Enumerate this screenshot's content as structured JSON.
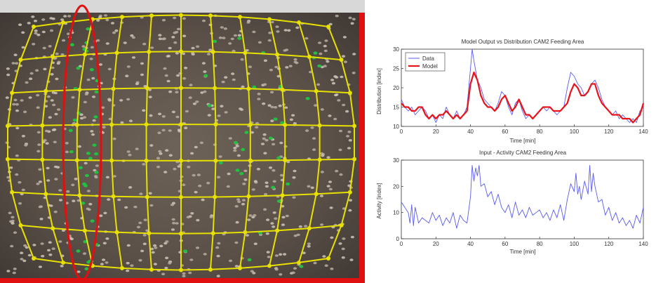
{
  "photo": {
    "description_icon": "camera-image-icon",
    "grid_color": "#e8e000",
    "highlight_color": "#e01010"
  },
  "chart_data": [
    {
      "type": "line",
      "title": "Model Output vs Distribution CAM2 Feeding Area",
      "xlabel": "Time [min]",
      "ylabel": "Distribution [index]",
      "xlim": [
        0,
        140
      ],
      "ylim": [
        10,
        30
      ],
      "xticks": [
        0,
        20,
        40,
        60,
        80,
        100,
        120,
        140
      ],
      "yticks": [
        10,
        15,
        20,
        25,
        30
      ],
      "legend": "top-left",
      "series": [
        {
          "name": "Data",
          "color": "#5a5af0",
          "x": [
            0,
            2,
            4,
            6,
            8,
            10,
            12,
            14,
            16,
            18,
            20,
            22,
            24,
            26,
            28,
            30,
            32,
            34,
            36,
            38,
            40,
            41,
            42,
            44,
            46,
            48,
            50,
            52,
            54,
            56,
            58,
            60,
            62,
            64,
            66,
            68,
            70,
            72,
            74,
            76,
            78,
            80,
            82,
            84,
            86,
            88,
            90,
            92,
            94,
            96,
            98,
            100,
            102,
            104,
            106,
            108,
            110,
            112,
            114,
            116,
            118,
            120,
            122,
            124,
            126,
            128,
            130,
            132,
            134,
            136,
            138,
            140
          ],
          "values": [
            17,
            15,
            14,
            15,
            13,
            14,
            15,
            14,
            12,
            13,
            11,
            13,
            12,
            15,
            13,
            12,
            14,
            12,
            13,
            15,
            25,
            30,
            27,
            22,
            20,
            17,
            16,
            15,
            14,
            16,
            19,
            18,
            15,
            13,
            16,
            17,
            14,
            12,
            13,
            12,
            13,
            14,
            15,
            14,
            15,
            14,
            13,
            14,
            15,
            20,
            24,
            23,
            21,
            20,
            18,
            19,
            21,
            22,
            20,
            17,
            15,
            14,
            13,
            14,
            12,
            13,
            12,
            11,
            12,
            11,
            14,
            15
          ]
        },
        {
          "name": "Model",
          "color": "#e8141c",
          "x": [
            0,
            2,
            4,
            6,
            8,
            10,
            12,
            14,
            16,
            18,
            20,
            22,
            24,
            26,
            28,
            30,
            32,
            34,
            36,
            38,
            40,
            42,
            44,
            46,
            48,
            50,
            52,
            54,
            56,
            58,
            60,
            62,
            64,
            66,
            68,
            70,
            72,
            74,
            76,
            78,
            80,
            82,
            84,
            86,
            88,
            90,
            92,
            94,
            96,
            98,
            100,
            102,
            104,
            106,
            108,
            110,
            112,
            114,
            116,
            118,
            120,
            122,
            124,
            126,
            128,
            130,
            132,
            134,
            136,
            138,
            140
          ],
          "values": [
            16,
            15,
            15,
            14,
            14,
            15,
            15,
            13,
            12,
            13,
            12,
            13,
            13,
            14,
            13,
            12,
            13,
            12,
            13,
            14,
            21,
            24,
            22,
            18,
            16,
            15,
            15,
            14,
            15,
            17,
            18,
            16,
            14,
            15,
            17,
            15,
            13,
            13,
            12,
            13,
            14,
            15,
            15,
            15,
            14,
            14,
            14,
            15,
            16,
            19,
            21,
            20,
            18,
            18,
            19,
            21,
            21,
            18,
            16,
            15,
            14,
            13,
            13,
            13,
            12,
            12,
            12,
            11,
            12,
            13,
            16
          ]
        }
      ]
    },
    {
      "type": "line",
      "title": "Input - Activity CAM2 Feeding Area",
      "xlabel": "Time [min]",
      "ylabel": "Activity [index]",
      "xlim": [
        0,
        140
      ],
      "ylim": [
        0,
        30
      ],
      "xticks": [
        0,
        20,
        40,
        60,
        80,
        100,
        120,
        140
      ],
      "yticks": [
        0,
        10,
        20,
        30
      ],
      "series": [
        {
          "color": "#5a5af0",
          "x": [
            0,
            2,
            4,
            5,
            6,
            7,
            8,
            9,
            10,
            12,
            14,
            16,
            18,
            20,
            22,
            24,
            26,
            28,
            30,
            32,
            34,
            36,
            38,
            40,
            41,
            42,
            43,
            44,
            45,
            46,
            48,
            50,
            52,
            54,
            56,
            58,
            60,
            62,
            64,
            66,
            68,
            70,
            72,
            74,
            76,
            78,
            80,
            82,
            84,
            86,
            88,
            90,
            92,
            94,
            96,
            98,
            100,
            101,
            102,
            103,
            104,
            106,
            108,
            109,
            110,
            111,
            112,
            114,
            116,
            118,
            120,
            122,
            124,
            126,
            128,
            130,
            132,
            134,
            136,
            138,
            140
          ],
          "values": [
            14,
            12,
            10,
            6,
            13,
            5,
            12,
            9,
            6,
            8,
            7,
            6,
            10,
            7,
            9,
            5,
            8,
            6,
            10,
            4,
            9,
            7,
            6,
            16,
            28,
            22,
            27,
            24,
            28,
            20,
            21,
            16,
            18,
            13,
            17,
            12,
            10,
            13,
            8,
            14,
            9,
            11,
            8,
            12,
            9,
            10,
            11,
            8,
            10,
            7,
            11,
            8,
            13,
            7,
            15,
            21,
            18,
            25,
            17,
            20,
            15,
            22,
            17,
            28,
            18,
            25,
            20,
            14,
            15,
            9,
            12,
            7,
            10,
            6,
            8,
            5,
            7,
            4,
            9,
            6,
            12
          ]
        }
      ]
    }
  ]
}
